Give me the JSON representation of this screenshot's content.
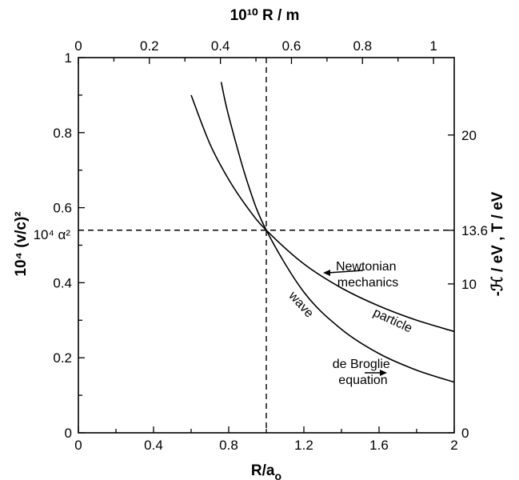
{
  "chart_data": {
    "type": "line",
    "xlabel": "R/a",
    "xlabel_sub": "o",
    "top_xlabel": "10¹⁰ R / m",
    "ylabel": "10⁴ (v/c)²",
    "right_ylabel": "-ℋ / eV , T / eV",
    "xlim": [
      0,
      2
    ],
    "ylim": [
      0,
      1
    ],
    "top_xlim": [
      0,
      1.0583
    ],
    "right_ylim": [
      0,
      25.2
    ],
    "x_ticks": [
      0,
      0.4,
      0.8,
      1.2,
      1.6,
      2
    ],
    "x_tick_labels": [
      "0",
      "0.4",
      "0.8",
      "1.2",
      "1.6",
      "2"
    ],
    "y_ticks": [
      0,
      0.2,
      0.4,
      0.6,
      0.8,
      1
    ],
    "y_tick_labels": [
      "0",
      "0.2",
      "0.4",
      "0.6",
      "0.8",
      "1"
    ],
    "top_ticks": [
      0,
      0.2,
      0.4,
      0.6,
      0.8,
      1
    ],
    "top_tick_labels": [
      "0",
      "0.2",
      "0.4",
      "0.6",
      "0.8",
      "1"
    ],
    "right_ticks": [
      0,
      10,
      13.6,
      20
    ],
    "right_tick_labels": [
      "0",
      "10",
      "13.6",
      "20"
    ],
    "y_special_label": "10⁴ α²",
    "reference_lines": {
      "x": 1.0,
      "y": 0.54
    },
    "series": [
      {
        "name": "Newtonian mechanics particle",
        "x": [
          0.6,
          0.7,
          0.8,
          0.9,
          1.0,
          1.2,
          1.4,
          1.6,
          1.8,
          2.0
        ],
        "y": [
          0.9,
          0.77,
          0.675,
          0.6,
          0.54,
          0.45,
          0.386,
          0.338,
          0.3,
          0.27
        ]
      },
      {
        "name": "de Broglie equation wave",
        "x": [
          0.76,
          0.8,
          0.9,
          1.0,
          1.2,
          1.4,
          1.6,
          1.8,
          2.0
        ],
        "y": [
          0.935,
          0.844,
          0.667,
          0.54,
          0.375,
          0.276,
          0.211,
          0.167,
          0.135
        ]
      }
    ],
    "annotations": [
      {
        "id": "newtonian",
        "lines": [
          "Newtonian",
          "mechanics"
        ]
      },
      {
        "id": "particle",
        "text": "particle"
      },
      {
        "id": "wave",
        "text": "wave"
      },
      {
        "id": "debroglie",
        "lines": [
          "de Broglie",
          "equation"
        ]
      }
    ]
  }
}
